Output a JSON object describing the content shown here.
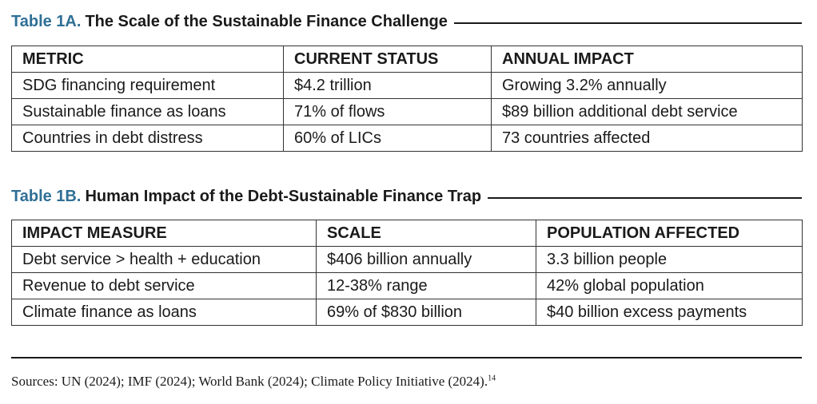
{
  "table_1a": {
    "number": "Table 1A.",
    "title": "The Scale of the Sustainable Finance Challenge",
    "headers": [
      "METRIC",
      "CURRENT STATUS",
      "ANNUAL IMPACT"
    ],
    "rows": [
      [
        "SDG financing requirement",
        "$4.2 trillion",
        "Growing 3.2% annually"
      ],
      [
        "Sustainable finance as loans",
        "71% of flows",
        "$89 billion additional debt service"
      ],
      [
        "Countries in debt distress",
        "60% of LICs",
        "73 countries affected"
      ]
    ]
  },
  "table_1b": {
    "number": "Table 1B.",
    "title": "Human Impact of the Debt-Sustainable Finance Trap",
    "headers": [
      "IMPACT MEASURE",
      "SCALE",
      "POPULATION AFFECTED"
    ],
    "rows": [
      [
        "Debt service > health + education",
        "$406 billion annually",
        "3.3 billion people"
      ],
      [
        "Revenue to debt service",
        "12-38% range",
        "42% global population"
      ],
      [
        "Climate finance as loans",
        "69% of $830 billion",
        "$40 billion excess payments"
      ]
    ]
  },
  "sources": {
    "text": "Sources: UN (2024); IMF (2024); World Bank (2024); Climate Policy Initiative (2024).",
    "footnote": "14"
  },
  "colors": {
    "table_number": "#2f6f96",
    "text": "#1a1a1a",
    "border": "#333333"
  }
}
